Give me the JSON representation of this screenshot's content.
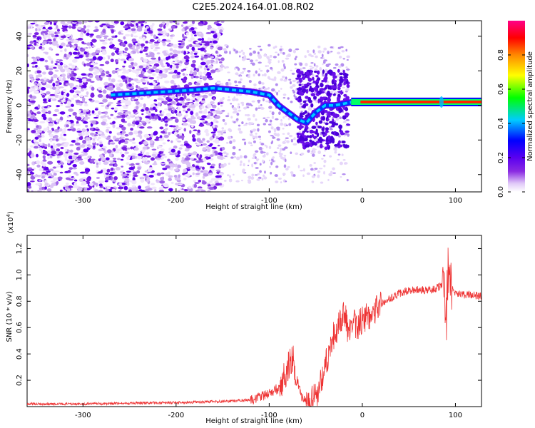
{
  "title": "C2E5.2024.164.01.08.R02",
  "chart_data": [
    {
      "type": "heatmap",
      "xlabel": "Height of straight line (km)",
      "ylabel": "Frequency (Hz)",
      "xlim": [
        -360,
        128
      ],
      "ylim": [
        -50,
        49
      ],
      "xticks": [
        -300,
        -200,
        -100,
        0,
        100
      ],
      "yticks": [
        -40,
        -20,
        0,
        20,
        40
      ],
      "xtick_labels": [
        "-300",
        "-200",
        "-100",
        "0",
        "100"
      ],
      "ytick_labels": [
        "-40",
        "-20",
        "0",
        "20",
        "40"
      ],
      "grid": false,
      "colorbar": {
        "label": "Normalized spectral amplitude",
        "range": [
          0,
          1
        ],
        "ticks": [
          0.0,
          0.2,
          0.4,
          0.6,
          0.8
        ],
        "tick_labels": [
          "0.0",
          "0.2",
          "0.4",
          "0.6",
          "0.8"
        ],
        "colors": [
          "#ffffff",
          "#e0c8f8",
          "#8a2be2",
          "#5a00f0",
          "#0000ff",
          "#00ccff",
          "#00ff00",
          "#ffff00",
          "#ff8800",
          "#ff0000",
          "#ff0088"
        ]
      },
      "ridge": {
        "x": [
          -270,
          -240,
          -210,
          -180,
          -160,
          -140,
          -120,
          -100,
          -90,
          -80,
          -70,
          -60,
          -50,
          -40,
          -30,
          -20,
          -10,
          0,
          50,
          128
        ],
        "y": [
          6,
          7,
          8,
          9,
          10,
          9,
          8,
          6,
          0,
          -4,
          -8,
          -10,
          -4,
          0,
          0,
          1,
          2,
          2,
          2,
          2
        ]
      }
    },
    {
      "type": "line",
      "xlabel": "Height of straight line (km)",
      "ylabel": "SNR (10 * v/v)",
      "exponent_label": "(x10",
      "exponent_power": "4",
      "exponent_close": ")",
      "color": "#ee3333",
      "xlim": [
        -360,
        128
      ],
      "ylim": [
        0,
        1.3
      ],
      "xticks": [
        -300,
        -200,
        -100,
        0,
        100
      ],
      "yticks": [
        0.2,
        0.4,
        0.6,
        0.8,
        1.0,
        1.2
      ],
      "xtick_labels": [
        "-300",
        "-200",
        "-100",
        "0",
        "100"
      ],
      "ytick_labels": [
        "0.2",
        "0.4",
        "0.6",
        "0.8",
        "1.0",
        "1.2"
      ],
      "grid": false,
      "x": [
        -360,
        -300,
        -200,
        -150,
        -120,
        -110,
        -100,
        -90,
        -80,
        -75,
        -70,
        -65,
        -60,
        -55,
        -50,
        -45,
        -40,
        -35,
        -30,
        -25,
        -20,
        -15,
        -10,
        -5,
        0,
        10,
        20,
        30,
        40,
        50,
        60,
        70,
        80,
        85,
        88,
        90,
        92,
        95,
        100,
        110,
        128
      ],
      "y": [
        0.02,
        0.02,
        0.03,
        0.04,
        0.05,
        0.07,
        0.1,
        0.14,
        0.3,
        0.38,
        0.2,
        0.07,
        0.02,
        0.03,
        0.08,
        0.18,
        0.3,
        0.45,
        0.55,
        0.6,
        0.75,
        0.55,
        0.65,
        0.62,
        0.65,
        0.72,
        0.78,
        0.82,
        0.86,
        0.88,
        0.89,
        0.88,
        0.9,
        0.92,
        1.0,
        0.6,
        1.1,
        0.9,
        0.86,
        0.85,
        0.84
      ]
    }
  ]
}
